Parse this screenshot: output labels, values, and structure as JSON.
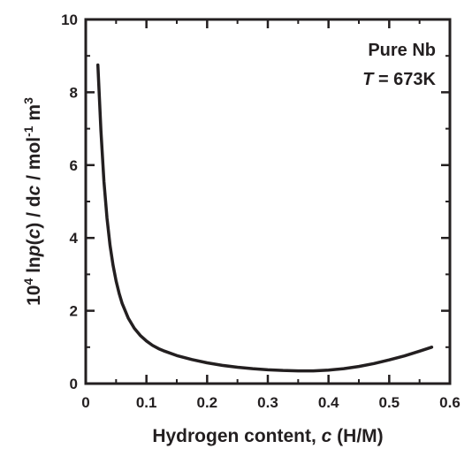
{
  "chart_data": {
    "type": "line",
    "xlabel": {
      "text": "Hydrogen content, ",
      "italic": "c",
      "suffix": " (H/M)"
    },
    "ylabel": {
      "prefix": "10",
      "sup": "4",
      "ln": " ln",
      "p": "p",
      "mid": "(",
      "c1": "c",
      "mid2": ") / d",
      "c2": "c",
      "unit": " / mol",
      "sup2": "-1",
      "tail": " m",
      "sup3": "3"
    },
    "xlim": [
      0,
      0.6
    ],
    "ylim": [
      0,
      10
    ],
    "xticks": [
      "0",
      "0.1",
      "0.2",
      "0.3",
      "0.4",
      "0.5",
      "0.6"
    ],
    "yticks": [
      "0",
      "2",
      "4",
      "6",
      "8",
      "10"
    ],
    "annotation": {
      "line1": "Pure Nb",
      "line2_italic": "T",
      "line2_rest": " = 673K"
    },
    "series": [
      {
        "color": "#231f20",
        "x": [
          0.02,
          0.025,
          0.03,
          0.035,
          0.04,
          0.045,
          0.05,
          0.055,
          0.06,
          0.07,
          0.08,
          0.09,
          0.1,
          0.11,
          0.12,
          0.13,
          0.15,
          0.175,
          0.2,
          0.225,
          0.25,
          0.275,
          0.3,
          0.325,
          0.35,
          0.375,
          0.4,
          0.425,
          0.45,
          0.475,
          0.5,
          0.525,
          0.55,
          0.57
        ],
        "y": [
          8.75,
          6.95,
          5.55,
          4.55,
          3.8,
          3.25,
          2.82,
          2.48,
          2.2,
          1.8,
          1.52,
          1.32,
          1.17,
          1.05,
          0.96,
          0.89,
          0.77,
          0.66,
          0.57,
          0.5,
          0.45,
          0.41,
          0.38,
          0.36,
          0.35,
          0.35,
          0.37,
          0.41,
          0.47,
          0.55,
          0.65,
          0.76,
          0.89,
          1.0
        ]
      }
    ]
  }
}
